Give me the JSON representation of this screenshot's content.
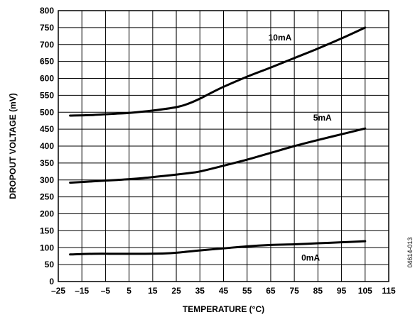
{
  "chart_data": {
    "type": "line",
    "title": "",
    "xlabel": "TEMPERATURE (°C)",
    "ylabel": "DROPOUT VOLTAGE (mV)",
    "xlim": [
      -25,
      115
    ],
    "ylim": [
      0,
      800
    ],
    "x_ticks": [
      -25,
      -15,
      -5,
      5,
      15,
      25,
      35,
      45,
      55,
      65,
      75,
      85,
      95,
      105,
      115
    ],
    "x_tick_labels": [
      "–25",
      "–15",
      "–5",
      "5",
      "15",
      "25",
      "35",
      "45",
      "55",
      "65",
      "75",
      "85",
      "95",
      "105",
      "115"
    ],
    "y_ticks": [
      0,
      50,
      100,
      150,
      200,
      250,
      300,
      350,
      400,
      450,
      500,
      550,
      600,
      650,
      700,
      750,
      800
    ],
    "y_tick_labels": [
      "0",
      "50",
      "100",
      "150",
      "200",
      "250",
      "300",
      "350",
      "400",
      "450",
      "500",
      "550",
      "600",
      "650",
      "700",
      "750",
      "800"
    ],
    "grid": true,
    "series": [
      {
        "name": "10mA",
        "x": [
          -20,
          -10,
          0,
          5,
          15,
          25,
          30,
          35,
          40,
          45,
          55,
          65,
          75,
          85,
          95,
          105
        ],
        "y": [
          490,
          492,
          496,
          498,
          505,
          515,
          525,
          540,
          558,
          575,
          605,
          632,
          660,
          688,
          718,
          750
        ]
      },
      {
        "name": "5mA",
        "x": [
          -20,
          -10,
          0,
          10,
          20,
          30,
          35,
          45,
          55,
          65,
          75,
          85,
          95,
          105
        ],
        "y": [
          292,
          296,
          300,
          305,
          312,
          320,
          325,
          342,
          360,
          380,
          400,
          418,
          435,
          452
        ]
      },
      {
        "name": "0mA",
        "x": [
          -20,
          -10,
          0,
          10,
          20,
          25,
          35,
          45,
          55,
          65,
          75,
          85,
          95,
          105
        ],
        "y": [
          80,
          82,
          82,
          82,
          83,
          85,
          92,
          98,
          104,
          108,
          110,
          113,
          116,
          119
        ]
      }
    ]
  },
  "figure_id": "04614-013"
}
